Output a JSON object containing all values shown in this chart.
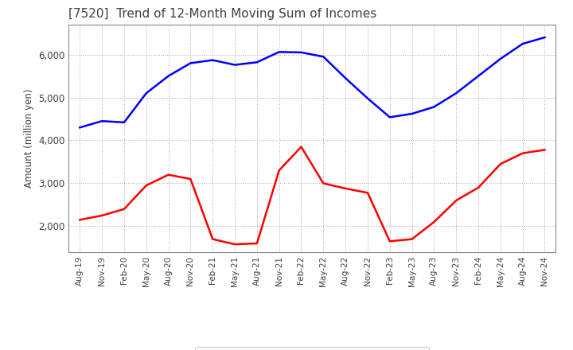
{
  "title": "[7520]  Trend of 12-Month Moving Sum of Incomes",
  "ylabel": "Amount (million yen)",
  "x_labels": [
    "Aug-19",
    "Nov-19",
    "Feb-20",
    "May-20",
    "Aug-20",
    "Nov-20",
    "Feb-21",
    "May-21",
    "Aug-21",
    "Nov-21",
    "Feb-22",
    "May-22",
    "Aug-22",
    "Nov-22",
    "Feb-23",
    "May-23",
    "Aug-23",
    "Nov-23",
    "Feb-24",
    "May-24",
    "Aug-24",
    "Nov-24"
  ],
  "ordinary_income": [
    4300,
    4450,
    4420,
    5100,
    5500,
    5800,
    5870,
    5760,
    5820,
    6060,
    6050,
    5950,
    5450,
    4980,
    4540,
    4620,
    4780,
    5100,
    5500,
    5900,
    6250,
    6400
  ],
  "net_income": [
    2150,
    2250,
    2400,
    2950,
    3200,
    3100,
    1700,
    1580,
    1600,
    3300,
    3850,
    3000,
    2880,
    2780,
    1650,
    1700,
    2100,
    2600,
    2900,
    3450,
    3700,
    3780
  ],
  "ordinary_color": "#0000FF",
  "net_color": "#FF0000",
  "grid_color": "#AAAAAA",
  "bg_color": "#FFFFFF",
  "title_color": "#404040",
  "ylim": [
    1400,
    6700
  ],
  "yticks": [
    2000,
    3000,
    4000,
    5000,
    6000
  ]
}
